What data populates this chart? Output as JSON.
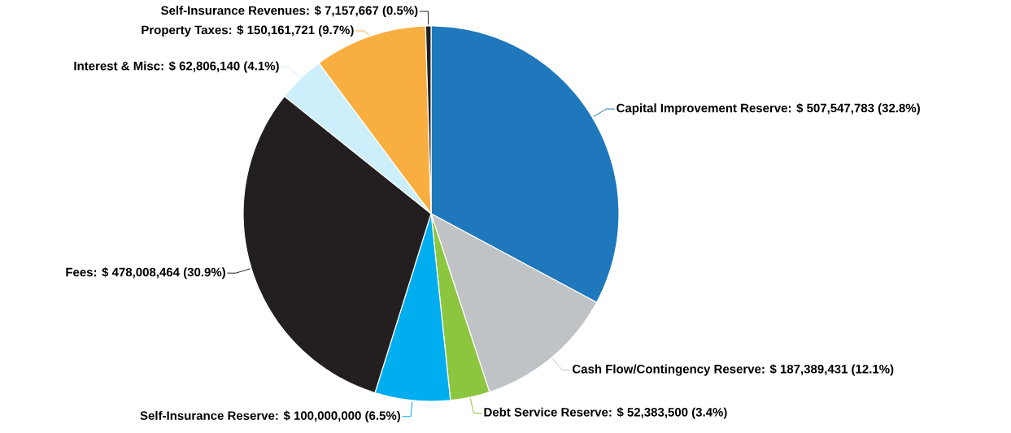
{
  "chart_data": {
    "type": "pie",
    "categories": [
      "Capital Improvement Reserve",
      "Cash Flow/Contingency Reserve",
      "Debt Service Reserve",
      "Self-Insurance Reserve",
      "Fees",
      "Interest & Misc",
      "Property Taxes",
      "Self-Insurance Revenues"
    ],
    "values": [
      507547783,
      187389431,
      52383500,
      100000000,
      478008464,
      62806140,
      150161721,
      7157667
    ],
    "value_labels": [
      ": $ 507,547,783 (32.8%)",
      ": $ 187,389,431 (12.1%)",
      ": $ 52,383,500 (3.4%)",
      ": $ 100,000,000 (6.5%)",
      ": $ 478,008,464 (30.9%)",
      ": $ 62,806,140 (4.1%)",
      ": $ 150,161,721 (9.7%)",
      ": $ 7,157,667 (0.5%)"
    ],
    "colors": [
      "#1f77bc",
      "#c0c3c6",
      "#8cc63f",
      "#00aeef",
      "#231f20",
      "#cdeefb",
      "#f9ae40",
      "#231f20"
    ]
  }
}
